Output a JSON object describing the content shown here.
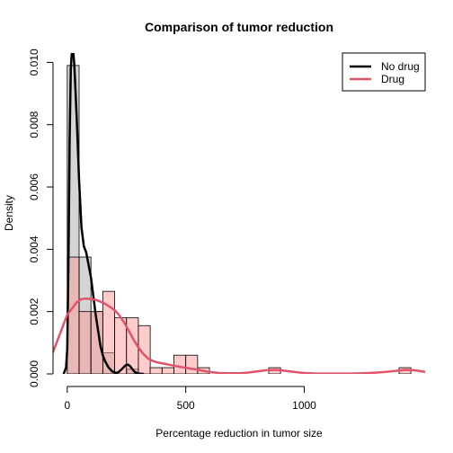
{
  "chart_data": {
    "type": "histogram",
    "title": "Comparison of tumor reduction",
    "xlabel": "Percentage reduction in tumor size",
    "ylabel": "Density",
    "xlim": [
      -60,
      1510
    ],
    "ylim": [
      0,
      0.0103
    ],
    "x_ticks": [
      0,
      500,
      1000
    ],
    "x_tick_labels": [
      "0",
      "500",
      "1000"
    ],
    "y_ticks": [
      0,
      0.002,
      0.004,
      0.006,
      0.008,
      0.01
    ],
    "y_tick_labels": [
      "0.000",
      "0.002",
      "0.004",
      "0.006",
      "0.008",
      "0.010"
    ],
    "legend_position": "top-right",
    "bin_width": 50,
    "series": [
      {
        "name": "No drug",
        "color": "#000000",
        "bar_fill": "#d3d3d3",
        "bins": [
          {
            "x0": 0,
            "x1": 50,
            "density": 0.0099
          },
          {
            "x0": 50,
            "x1": 100,
            "density": 0.00375
          },
          {
            "x0": 100,
            "x1": 150,
            "density": 0.002
          },
          {
            "x0": 150,
            "x1": 200,
            "density": 0.00068
          },
          {
            "x0": 200,
            "x1": 250,
            "density": 0.0
          },
          {
            "x0": 250,
            "x1": 300,
            "density": 0.00015
          }
        ],
        "density_curve": [
          [
            -15,
            0.0
          ],
          [
            -5,
            0.0002
          ],
          [
            0,
            0.0008
          ],
          [
            5,
            0.0035
          ],
          [
            10,
            0.0075
          ],
          [
            15,
            0.0098
          ],
          [
            20,
            0.0104
          ],
          [
            25,
            0.0104
          ],
          [
            30,
            0.0099
          ],
          [
            40,
            0.0082
          ],
          [
            50,
            0.0062
          ],
          [
            60,
            0.0047
          ],
          [
            70,
            0.0041
          ],
          [
            80,
            0.0039
          ],
          [
            90,
            0.0035
          ],
          [
            100,
            0.0031
          ],
          [
            110,
            0.0025
          ],
          [
            120,
            0.0019
          ],
          [
            130,
            0.0014
          ],
          [
            140,
            0.0009
          ],
          [
            150,
            0.0006
          ],
          [
            160,
            0.0004
          ],
          [
            175,
            0.0002
          ],
          [
            190,
            8e-05
          ],
          [
            205,
            3e-05
          ],
          [
            215,
            5e-05
          ],
          [
            230,
            0.00015
          ],
          [
            245,
            0.00027
          ],
          [
            255,
            0.0003
          ],
          [
            265,
            0.00025
          ],
          [
            275,
            0.00015
          ],
          [
            285,
            6e-05
          ],
          [
            300,
            1e-05
          ],
          [
            320,
            0.0
          ]
        ]
      },
      {
        "name": "Drug",
        "color": "#df536b",
        "bar_fill": "#ff9999",
        "bins": [
          {
            "x0": 0,
            "x1": 50,
            "density": 0.00375
          },
          {
            "x0": 50,
            "x1": 100,
            "density": 0.002
          },
          {
            "x0": 100,
            "x1": 150,
            "density": 0.002
          },
          {
            "x0": 150,
            "x1": 200,
            "density": 0.00265
          },
          {
            "x0": 200,
            "x1": 250,
            "density": 0.0018
          },
          {
            "x0": 250,
            "x1": 300,
            "density": 0.0018
          },
          {
            "x0": 300,
            "x1": 350,
            "density": 0.00155
          },
          {
            "x0": 350,
            "x1": 400,
            "density": 0.0002
          },
          {
            "x0": 400,
            "x1": 450,
            "density": 0.0002
          },
          {
            "x0": 450,
            "x1": 500,
            "density": 0.0006
          },
          {
            "x0": 500,
            "x1": 550,
            "density": 0.0006
          },
          {
            "x0": 550,
            "x1": 600,
            "density": 0.0002
          },
          {
            "x0": 600,
            "x1": 650,
            "density": 0.0
          },
          {
            "x0": 650,
            "x1": 700,
            "density": 0.0
          },
          {
            "x0": 700,
            "x1": 750,
            "density": 0.0
          },
          {
            "x0": 750,
            "x1": 800,
            "density": 0.0
          },
          {
            "x0": 800,
            "x1": 850,
            "density": 0.0
          },
          {
            "x0": 850,
            "x1": 900,
            "density": 0.0002
          },
          {
            "x0": 900,
            "x1": 950,
            "density": 0.0
          },
          {
            "x0": 950,
            "x1": 1000,
            "density": 0.0
          },
          {
            "x0": 1000,
            "x1": 1050,
            "density": 0.0
          },
          {
            "x0": 1050,
            "x1": 1100,
            "density": 0.0
          },
          {
            "x0": 1100,
            "x1": 1150,
            "density": 0.0
          },
          {
            "x0": 1150,
            "x1": 1200,
            "density": 0.0
          },
          {
            "x0": 1200,
            "x1": 1250,
            "density": 0.0
          },
          {
            "x0": 1250,
            "x1": 1300,
            "density": 0.0
          },
          {
            "x0": 1300,
            "x1": 1350,
            "density": 0.0
          },
          {
            "x0": 1350,
            "x1": 1400,
            "density": 0.0
          },
          {
            "x0": 1400,
            "x1": 1450,
            "density": 0.0002
          }
        ],
        "density_curve": [
          [
            -60,
            0.0007
          ],
          [
            -40,
            0.0011
          ],
          [
            -20,
            0.0015
          ],
          [
            0,
            0.0019
          ],
          [
            20,
            0.0021
          ],
          [
            40,
            0.0023
          ],
          [
            60,
            0.0024
          ],
          [
            80,
            0.00242
          ],
          [
            100,
            0.0024
          ],
          [
            120,
            0.00238
          ],
          [
            140,
            0.00232
          ],
          [
            160,
            0.00225
          ],
          [
            180,
            0.00215
          ],
          [
            200,
            0.00205
          ],
          [
            220,
            0.00188
          ],
          [
            240,
            0.00165
          ],
          [
            260,
            0.00138
          ],
          [
            280,
            0.0011
          ],
          [
            300,
            0.00085
          ],
          [
            320,
            0.00065
          ],
          [
            340,
            0.0005
          ],
          [
            360,
            0.00042
          ],
          [
            380,
            0.00037
          ],
          [
            400,
            0.00034
          ],
          [
            420,
            0.00031
          ],
          [
            440,
            0.00028
          ],
          [
            460,
            0.00025
          ],
          [
            480,
            0.00022
          ],
          [
            500,
            0.0002
          ],
          [
            520,
            0.00017
          ],
          [
            540,
            0.00015
          ],
          [
            560,
            0.00012
          ],
          [
            580,
            9e-05
          ],
          [
            600,
            6e-05
          ],
          [
            640,
            3e-05
          ],
          [
            680,
            2e-05
          ],
          [
            720,
            2e-05
          ],
          [
            760,
            4e-05
          ],
          [
            800,
            8e-05
          ],
          [
            840,
            0.00012
          ],
          [
            880,
            0.00013
          ],
          [
            920,
            0.0001
          ],
          [
            960,
            6e-05
          ],
          [
            1000,
            3e-05
          ],
          [
            1050,
            1e-05
          ],
          [
            1100,
            1e-05
          ],
          [
            1150,
            1e-05
          ],
          [
            1200,
            1e-05
          ],
          [
            1250,
            2e-05
          ],
          [
            1300,
            4e-05
          ],
          [
            1350,
            7e-05
          ],
          [
            1400,
            0.00011
          ],
          [
            1430,
            0.00013
          ],
          [
            1460,
            0.00012
          ],
          [
            1490,
            9e-05
          ],
          [
            1510,
            6e-05
          ]
        ]
      }
    ]
  }
}
